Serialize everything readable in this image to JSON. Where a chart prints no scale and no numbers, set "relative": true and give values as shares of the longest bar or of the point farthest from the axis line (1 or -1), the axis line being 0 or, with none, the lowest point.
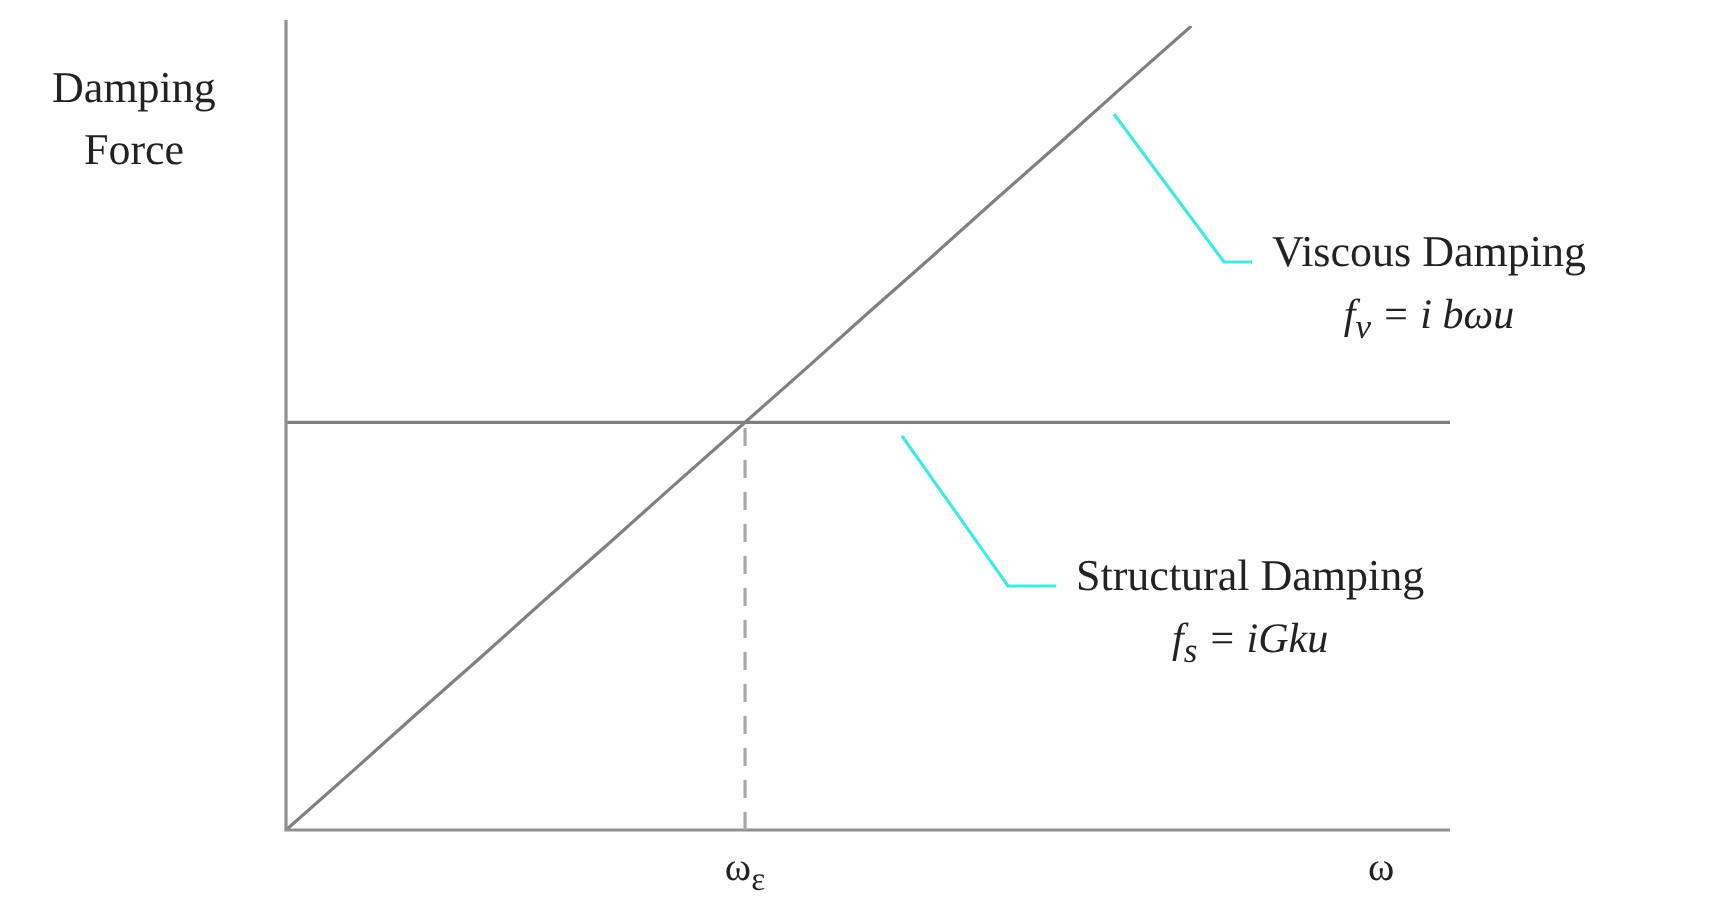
{
  "chart_data": {
    "type": "line",
    "relative": true,
    "ylabel": "Damping Force",
    "xlabel": "ω",
    "grid": false,
    "legend": false,
    "marker": "none",
    "line_style": "solid",
    "categories": [
      null,
      null,
      null,
      null,
      null,
      null,
      null,
      null,
      null,
      null,
      null,
      null,
      null,
      null,
      null,
      null,
      null,
      null,
      null
    ],
    "series": [
      {
        "name": "Viscous Damping",
        "color": "#808080",
        "values": [
          0,
          0.071,
          0.143,
          0.214,
          0.286,
          0.357,
          0.429,
          0.5,
          0.571,
          0.643,
          0.714,
          0.786,
          0.857,
          0.929,
          1,
          null,
          null,
          null,
          null
        ]
      },
      {
        "name": "Structural Damping",
        "color": "#808080",
        "values": [
          0.507,
          0.507,
          0.507,
          0.507,
          0.507,
          0.507,
          0.507,
          0.507,
          0.507,
          0.507,
          0.507,
          0.507,
          0.507,
          0.507,
          0.507,
          0.507,
          0.507,
          0.507,
          0.507
        ]
      }
    ],
    "annotations": [
      "f$_{v}$ = i bωu",
      "f$_{s}$ = iGku",
      "ω$_{ε}$"
    ]
  }
}
